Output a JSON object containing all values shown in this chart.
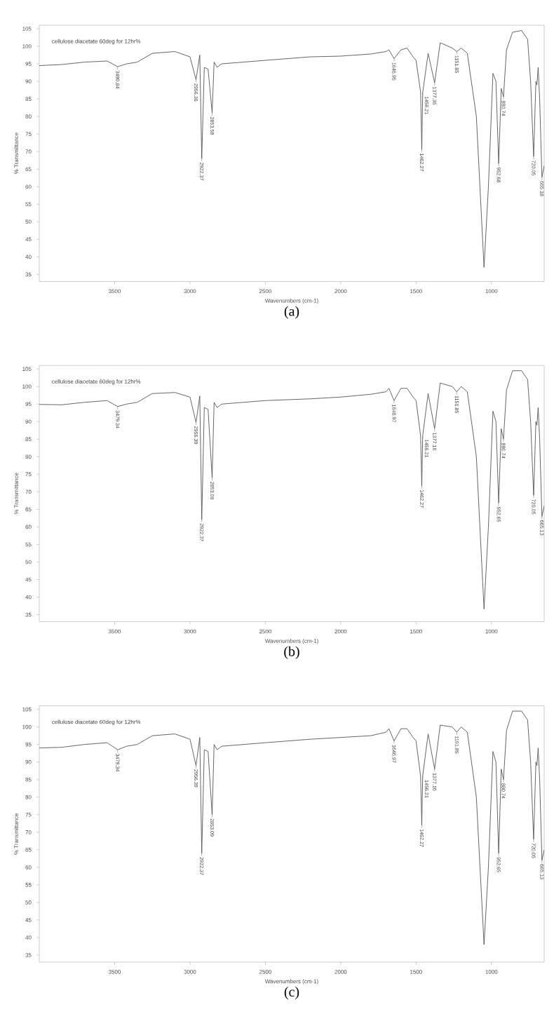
{
  "chart_data": [
    {
      "type": "line",
      "title": "(a)",
      "subtitle": "cellulose diacetate 60deg for 12hr%",
      "xlabel": "Wavenumbers (cm-1)",
      "ylabel": "% Transmittance",
      "color": "#555555",
      "grid": false,
      "marker": "none",
      "line_style": "solid",
      "x": [
        4000,
        3850,
        3700,
        3550,
        3480,
        3420,
        3350,
        3250,
        3100,
        3000,
        2960,
        2935,
        2922,
        2905,
        2880,
        2853,
        2840,
        2820,
        2790,
        2500,
        2200,
        2000,
        1800,
        1700,
        1680,
        1646,
        1600,
        1560,
        1520,
        1500,
        1470,
        1462,
        1456,
        1420,
        1377,
        1340,
        1260,
        1230,
        1200,
        1160,
        1100,
        1049,
        1020,
        990,
        970,
        952,
        935,
        920,
        900,
        860,
        800,
        760,
        740,
        720,
        705,
        698,
        690,
        680,
        665,
        650
      ],
      "values": [
        94.5,
        94.8,
        95.5,
        95.8,
        94.2,
        95,
        95.5,
        98,
        98.5,
        97,
        90.5,
        97.5,
        68,
        94,
        93.5,
        81,
        95.5,
        94,
        95,
        96,
        97,
        97.2,
        97.8,
        98.5,
        99,
        96.5,
        99,
        99.5,
        97,
        96,
        87,
        70.6,
        86.8,
        98,
        89.6,
        101,
        99.5,
        98.5,
        99.5,
        98,
        80,
        37,
        60,
        92.3,
        90,
        66.6,
        88,
        85.6,
        99,
        104,
        104.5,
        102,
        90,
        68.6,
        90,
        89,
        94,
        85,
        62.7,
        66
      ],
      "xlim": [
        4000,
        650
      ],
      "ylim": [
        33,
        106
      ],
      "xticks": [
        3500,
        3000,
        2500,
        2000,
        1500,
        1000
      ],
      "yticks": [
        35,
        40,
        45,
        50,
        55,
        60,
        65,
        70,
        75,
        80,
        85,
        90,
        95,
        100,
        105
      ],
      "annotations": [
        {
          "text": "3480.84",
          "x": 3480,
          "y": 94.2
        },
        {
          "text": "2956.36",
          "x": 2960,
          "y": 90.5
        },
        {
          "text": "2922.37",
          "x": 2922,
          "y": 68
        },
        {
          "text": "2853.58",
          "x": 2853,
          "y": 81
        },
        {
          "text": "1646.95",
          "x": 1646,
          "y": 96.5
        },
        {
          "text": "1462.27",
          "x": 1462,
          "y": 70.6
        },
        {
          "text": "1456.21",
          "x": 1456,
          "y": 86.8
        },
        {
          "text": "1377.36",
          "x": 1377,
          "y": 89.6
        },
        {
          "text": "1151.85",
          "x": 1230,
          "y": 98.5
        },
        {
          "text": "952.68",
          "x": 952,
          "y": 66.6
        },
        {
          "text": "880.74",
          "x": 920,
          "y": 85.6
        },
        {
          "text": "720.05",
          "x": 720,
          "y": 68.6
        },
        {
          "text": "665.18",
          "x": 665,
          "y": 62.7
        }
      ]
    },
    {
      "type": "line",
      "title": "(b)",
      "subtitle": "cellulose diacetate 60deg for 12hr%",
      "xlabel": "Wavenumbers (cm-1)",
      "ylabel": "% Transmittance",
      "color": "#555555",
      "grid": false,
      "marker": "none",
      "line_style": "solid",
      "x": [
        4000,
        3850,
        3700,
        3550,
        3480,
        3420,
        3350,
        3250,
        3100,
        3000,
        2960,
        2935,
        2922,
        2905,
        2880,
        2853,
        2840,
        2820,
        2790,
        2500,
        2200,
        2000,
        1800,
        1700,
        1680,
        1646,
        1600,
        1560,
        1520,
        1500,
        1470,
        1462,
        1456,
        1420,
        1377,
        1340,
        1260,
        1230,
        1200,
        1160,
        1100,
        1049,
        1020,
        990,
        970,
        952,
        935,
        920,
        900,
        860,
        800,
        760,
        740,
        720,
        705,
        698,
        690,
        680,
        665,
        650
      ],
      "values": [
        94.9,
        94.8,
        95.5,
        96,
        94.3,
        95,
        95.5,
        98,
        98.3,
        97,
        89.8,
        97.3,
        62.1,
        94,
        93.5,
        74,
        95.5,
        94,
        95,
        96,
        96.5,
        97,
        97.8,
        98.5,
        99.5,
        96,
        99.5,
        99.5,
        97,
        96,
        86,
        71.7,
        86,
        98,
        88,
        101,
        100,
        98.5,
        100,
        98.5,
        80,
        36.6,
        60,
        93,
        90,
        66.8,
        88,
        85,
        99,
        104.5,
        104.5,
        102,
        90,
        69,
        90,
        89,
        94,
        85,
        63,
        66
      ],
      "xlim": [
        4000,
        650
      ],
      "ylim": [
        33,
        106
      ],
      "xticks": [
        3500,
        3000,
        2500,
        2000,
        1500,
        1000
      ],
      "yticks": [
        35,
        40,
        45,
        50,
        55,
        60,
        65,
        70,
        75,
        80,
        85,
        90,
        95,
        100,
        105
      ],
      "annotations": [
        {
          "text": "3479.34",
          "x": 3480,
          "y": 94.3
        },
        {
          "text": "2956.39",
          "x": 2960,
          "y": 89.8
        },
        {
          "text": "2922.37",
          "x": 2922,
          "y": 62.1
        },
        {
          "text": "2853.09",
          "x": 2853,
          "y": 74
        },
        {
          "text": "1646.97",
          "x": 1646,
          "y": 96
        },
        {
          "text": "1462.27",
          "x": 1462,
          "y": 71.7
        },
        {
          "text": "1456.21",
          "x": 1456,
          "y": 86
        },
        {
          "text": "1377.16",
          "x": 1377,
          "y": 88
        },
        {
          "text": "1151.85",
          "x": 1230,
          "y": 98.5
        },
        {
          "text": "952.65",
          "x": 952,
          "y": 66.8
        },
        {
          "text": "880.74",
          "x": 920,
          "y": 85
        },
        {
          "text": "720.05",
          "x": 720,
          "y": 69
        },
        {
          "text": "665.13",
          "x": 665,
          "y": 63
        }
      ]
    },
    {
      "type": "line",
      "title": "(c)",
      "subtitle": "cellulose diacetate 60deg for 12hr%",
      "xlabel": "Wavenumbers (cm-1)",
      "ylabel": "% Transmittance",
      "color": "#555555",
      "grid": false,
      "marker": "none",
      "line_style": "solid",
      "x": [
        4000,
        3850,
        3700,
        3550,
        3480,
        3420,
        3350,
        3250,
        3100,
        3000,
        2960,
        2935,
        2922,
        2905,
        2880,
        2853,
        2840,
        2820,
        2790,
        2500,
        2200,
        2000,
        1800,
        1700,
        1680,
        1646,
        1600,
        1560,
        1520,
        1500,
        1470,
        1462,
        1456,
        1420,
        1377,
        1340,
        1260,
        1230,
        1200,
        1160,
        1100,
        1049,
        1020,
        990,
        970,
        952,
        935,
        920,
        900,
        860,
        800,
        760,
        740,
        720,
        705,
        698,
        690,
        680,
        665,
        650
      ],
      "values": [
        94,
        94.2,
        95,
        95.5,
        93.5,
        94.5,
        95,
        97.5,
        98,
        96.5,
        89,
        97,
        64,
        93.5,
        93,
        75,
        95,
        93.5,
        94.5,
        95.5,
        96.5,
        97,
        97.5,
        98.5,
        99.5,
        96,
        99.5,
        99.5,
        97,
        96,
        86,
        72,
        86,
        98,
        88,
        100.5,
        100,
        98.5,
        100,
        98.5,
        80,
        38,
        60,
        93,
        90,
        64,
        88,
        85,
        99,
        104.5,
        104.5,
        102,
        90,
        68,
        90,
        89,
        94,
        85,
        62,
        65
      ],
      "xlim": [
        4000,
        650
      ],
      "ylim": [
        33,
        106
      ],
      "xticks": [
        3500,
        3000,
        2500,
        2000,
        1500,
        1000
      ],
      "yticks": [
        35,
        40,
        45,
        50,
        55,
        60,
        65,
        70,
        75,
        80,
        85,
        90,
        95,
        100,
        105
      ],
      "annotations": [
        {
          "text": "3479.34",
          "x": 3480,
          "y": 93.5
        },
        {
          "text": "2956.39",
          "x": 2960,
          "y": 89
        },
        {
          "text": "2922.37",
          "x": 2922,
          "y": 64
        },
        {
          "text": "2853.09",
          "x": 2853,
          "y": 75
        },
        {
          "text": "1646.97",
          "x": 1646,
          "y": 96
        },
        {
          "text": "1462.27",
          "x": 1462,
          "y": 72
        },
        {
          "text": "1456.21",
          "x": 1456,
          "y": 86
        },
        {
          "text": "1377.16",
          "x": 1377,
          "y": 88
        },
        {
          "text": "1151.85",
          "x": 1230,
          "y": 98.5
        },
        {
          "text": "952.65",
          "x": 952,
          "y": 64
        },
        {
          "text": "880.74",
          "x": 920,
          "y": 85
        },
        {
          "text": "720.05",
          "x": 720,
          "y": 68
        },
        {
          "text": "665.13",
          "x": 665,
          "y": 62
        }
      ]
    }
  ]
}
